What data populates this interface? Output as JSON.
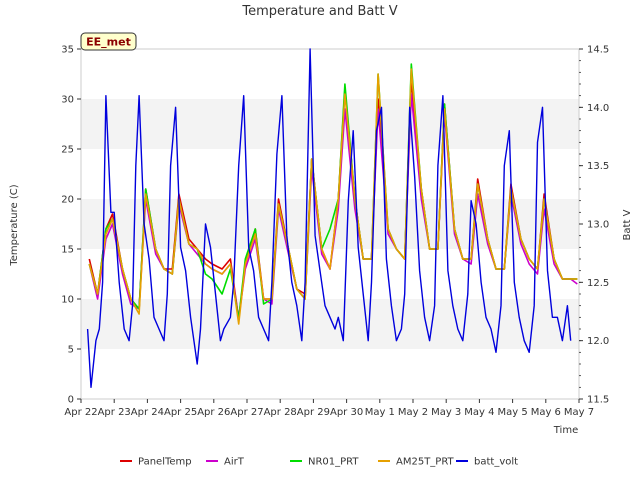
{
  "chart_data": {
    "type": "line",
    "title": "Temperature and Batt V",
    "station_label": "EE_met",
    "xlabel": "Time",
    "ylabel": "Temperature (C)",
    "y2label": "Batt V",
    "x_ticks": [
      "Apr 22",
      "Apr 23",
      "Apr 24",
      "Apr 25",
      "Apr 26",
      "Apr 27",
      "Apr 28",
      "Apr 29",
      "Apr 30",
      "May 1",
      "May 2",
      "May 3",
      "May 4",
      "May 5",
      "May 6",
      "May 7"
    ],
    "xlim": [
      0,
      15
    ],
    "ylim": [
      0,
      35
    ],
    "y_ticks": [
      0,
      5,
      10,
      15,
      20,
      25,
      30,
      35
    ],
    "y2lim": [
      11.5,
      14.5
    ],
    "y2_ticks": [
      11.5,
      12.0,
      12.5,
      13.0,
      13.5,
      14.0,
      14.5
    ],
    "grid": "horizontal bands",
    "legend_position": "bottom",
    "series": [
      {
        "name": "PanelTemp",
        "color": "#dd0000",
        "axis": "left",
        "x": [
          0.25,
          0.5,
          0.75,
          0.95,
          1.25,
          1.5,
          1.75,
          1.95,
          2.25,
          2.5,
          2.75,
          2.95,
          3.25,
          3.5,
          3.75,
          3.95,
          4.25,
          4.5,
          4.75,
          4.95,
          5.25,
          5.5,
          5.75,
          5.95,
          6.25,
          6.5,
          6.75,
          6.95,
          7.25,
          7.5,
          7.75,
          7.95,
          8.25,
          8.5,
          8.75,
          8.95,
          9.25,
          9.5,
          9.75,
          9.95,
          10.25,
          10.5,
          10.75,
          10.95,
          11.25,
          11.5,
          11.75,
          11.95,
          12.25,
          12.5,
          12.75,
          12.95,
          13.25,
          13.5,
          13.75,
          13.95,
          14.25,
          14.5,
          14.75,
          14.95
        ],
        "values": [
          14,
          10.5,
          17,
          18.5,
          13,
          10,
          9,
          21,
          15,
          13,
          13,
          20.5,
          16,
          15,
          14,
          13.5,
          13,
          14,
          8,
          13.5,
          17,
          10,
          10,
          20,
          15,
          11,
          10.5,
          24,
          15,
          13,
          20,
          31,
          20,
          14,
          14,
          30,
          17,
          15,
          14,
          32,
          21,
          15,
          15,
          29.5,
          17,
          14,
          14,
          22,
          16,
          13,
          13,
          21.5,
          16,
          14,
          13,
          20.5,
          14,
          12,
          12,
          12
        ]
      },
      {
        "name": "AirT",
        "color": "#cc00cc",
        "axis": "left",
        "x": [
          0.25,
          0.5,
          0.75,
          0.95,
          1.25,
          1.5,
          1.75,
          1.95,
          2.25,
          2.5,
          2.75,
          2.95,
          3.25,
          3.5,
          3.75,
          3.95,
          4.25,
          4.5,
          4.75,
          4.95,
          5.25,
          5.5,
          5.75,
          5.95,
          6.25,
          6.5,
          6.75,
          6.95,
          7.25,
          7.5,
          7.75,
          7.95,
          8.25,
          8.5,
          8.75,
          8.95,
          9.25,
          9.5,
          9.75,
          9.95,
          10.25,
          10.5,
          10.75,
          10.95,
          11.25,
          11.5,
          11.75,
          11.95,
          12.25,
          12.5,
          12.75,
          12.95,
          13.25,
          13.5,
          13.75,
          13.95,
          14.25,
          14.5,
          14.75,
          14.95
        ],
        "values": [
          13.5,
          10,
          16,
          17.5,
          12.5,
          9.5,
          9,
          20,
          14.5,
          13,
          12.5,
          19.5,
          15.5,
          14.5,
          13.5,
          13,
          12.5,
          13.5,
          8,
          13,
          16,
          10,
          9.5,
          19,
          14.5,
          11,
          10,
          23,
          14.5,
          13,
          19,
          29,
          19,
          14,
          14,
          29,
          16.5,
          15,
          14,
          30.5,
          20,
          15,
          15,
          28.5,
          16.5,
          14,
          13.5,
          20.5,
          15.5,
          13,
          13,
          20.5,
          15.5,
          13.5,
          12.5,
          19,
          13.5,
          12,
          12,
          11.5
        ]
      },
      {
        "name": "NR01_PRT",
        "color": "#00dd00",
        "axis": "left",
        "x": [
          0.25,
          0.5,
          0.75,
          0.95,
          1.25,
          1.5,
          1.75,
          1.95,
          2.25,
          2.5,
          2.75,
          2.95,
          3.25,
          3.5,
          3.75,
          3.95,
          4.25,
          4.5,
          4.75,
          4.95,
          5.25,
          5.5,
          5.75,
          5.95,
          6.25,
          6.5,
          6.75,
          6.95,
          7.25,
          7.5,
          7.75,
          7.95,
          8.25,
          8.5,
          8.75,
          8.95,
          9.25,
          9.5,
          9.75,
          9.95,
          10.25,
          10.5,
          10.75,
          10.95,
          11.25,
          11.5,
          11.75,
          11.95,
          12.25,
          12.5,
          12.75,
          12.95,
          13.25,
          13.5,
          13.75,
          13.95,
          14.25,
          14.5,
          14.75,
          14.95
        ],
        "values": [
          13.5,
          10.5,
          17,
          18,
          13,
          10,
          9,
          21,
          15,
          13,
          12.5,
          20,
          15.5,
          15,
          12.5,
          12,
          10.5,
          13,
          8,
          14,
          17,
          9.5,
          10,
          19.5,
          15,
          11,
          10,
          24,
          15,
          17,
          20,
          31.5,
          20,
          14,
          14,
          32.5,
          17,
          15,
          14,
          33.5,
          21,
          15,
          15,
          29.5,
          17,
          14,
          14,
          21.5,
          16,
          13,
          13,
          21,
          16,
          14,
          13,
          20,
          14,
          12,
          12,
          12
        ]
      },
      {
        "name": "AM25T_PRT",
        "color": "#e6a000",
        "axis": "left",
        "x": [
          0.25,
          0.5,
          0.75,
          0.95,
          1.25,
          1.5,
          1.75,
          1.95,
          2.25,
          2.5,
          2.75,
          2.95,
          3.25,
          3.5,
          3.75,
          3.95,
          4.25,
          4.5,
          4.75,
          4.95,
          5.25,
          5.5,
          5.75,
          5.95,
          6.25,
          6.5,
          6.75,
          6.95,
          7.25,
          7.5,
          7.75,
          7.95,
          8.25,
          8.5,
          8.75,
          8.95,
          9.25,
          9.5,
          9.75,
          9.95,
          10.25,
          10.5,
          10.75,
          10.95,
          11.25,
          11.5,
          11.75,
          11.95,
          12.25,
          12.5,
          12.75,
          12.95,
          13.25,
          13.5,
          13.75,
          13.95,
          14.25,
          14.5,
          14.75,
          14.95
        ],
        "values": [
          13.5,
          10.5,
          16.5,
          18,
          13,
          10,
          8.5,
          20.5,
          15,
          13,
          12.5,
          20,
          15.5,
          15,
          13.5,
          13,
          12.5,
          13.5,
          7.5,
          13.5,
          16.5,
          10,
          10,
          19.5,
          15,
          11,
          10,
          24,
          15,
          13,
          20,
          30.5,
          20,
          14,
          14,
          32.5,
          17,
          15,
          14,
          33,
          21,
          15,
          15,
          29,
          17,
          14,
          14,
          21.5,
          16,
          13,
          13,
          21,
          16,
          14,
          13,
          20,
          14,
          12,
          12,
          12
        ]
      },
      {
        "name": "batt_volt",
        "color": "#0000dd",
        "axis": "right",
        "x": [
          0.2,
          0.3,
          0.45,
          0.55,
          0.65,
          0.75,
          0.9,
          1.0,
          1.15,
          1.3,
          1.45,
          1.55,
          1.65,
          1.75,
          1.9,
          2.05,
          2.2,
          2.35,
          2.5,
          2.6,
          2.7,
          2.85,
          3.0,
          3.15,
          3.3,
          3.5,
          3.6,
          3.75,
          3.9,
          4.05,
          4.2,
          4.3,
          4.5,
          4.6,
          4.75,
          4.9,
          5.05,
          5.2,
          5.35,
          5.5,
          5.65,
          5.75,
          5.9,
          6.05,
          6.2,
          6.35,
          6.5,
          6.65,
          6.75,
          6.9,
          7.05,
          7.2,
          7.35,
          7.5,
          7.65,
          7.75,
          7.9,
          8.05,
          8.2,
          8.35,
          8.5,
          8.65,
          8.75,
          8.9,
          9.05,
          9.2,
          9.35,
          9.5,
          9.65,
          9.75,
          9.9,
          10.05,
          10.2,
          10.35,
          10.5,
          10.65,
          10.75,
          10.9,
          11.05,
          11.2,
          11.35,
          11.5,
          11.65,
          11.75,
          11.9,
          12.05,
          12.2,
          12.35,
          12.5,
          12.65,
          12.75,
          12.9,
          13.05,
          13.2,
          13.35,
          13.5,
          13.65,
          13.75,
          13.9,
          14.05,
          14.2,
          14.35,
          14.5,
          14.65,
          14.75
        ],
        "values": [
          12.1,
          11.6,
          12.0,
          12.1,
          12.5,
          14.1,
          13.1,
          13.1,
          12.5,
          12.1,
          12.0,
          12.3,
          13.5,
          14.1,
          13.0,
          12.7,
          12.2,
          12.1,
          12.0,
          12.4,
          13.5,
          14.0,
          12.8,
          12.6,
          12.2,
          11.8,
          12.1,
          13.0,
          12.8,
          12.4,
          12.0,
          12.1,
          12.2,
          12.5,
          13.5,
          14.1,
          12.8,
          12.6,
          12.2,
          12.1,
          12.0,
          12.5,
          13.6,
          14.1,
          12.9,
          12.5,
          12.3,
          12.0,
          12.5,
          14.5,
          12.9,
          12.6,
          12.3,
          12.2,
          12.1,
          12.2,
          12.0,
          13.2,
          13.8,
          12.8,
          12.4,
          12.0,
          12.5,
          13.8,
          14.0,
          12.7,
          12.3,
          12.0,
          12.1,
          12.4,
          14.0,
          13.4,
          12.6,
          12.2,
          12.0,
          12.3,
          13.5,
          14.1,
          12.6,
          12.3,
          12.1,
          12.0,
          12.4,
          13.2,
          13.0,
          12.5,
          12.2,
          12.1,
          11.9,
          12.3,
          13.5,
          13.8,
          12.5,
          12.2,
          12.0,
          11.9,
          12.3,
          13.7,
          14.0,
          12.6,
          12.2,
          12.2,
          12.0,
          12.3,
          12.0
        ]
      }
    ]
  }
}
